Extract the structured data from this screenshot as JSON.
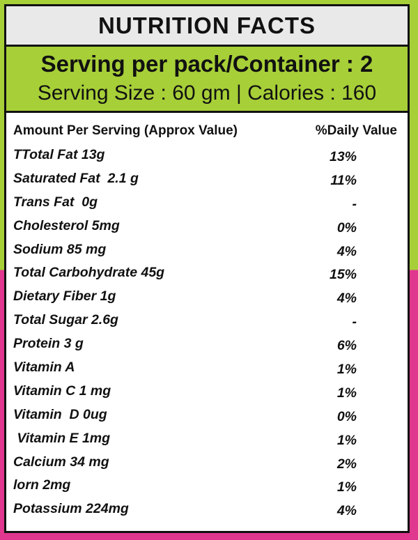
{
  "header": {
    "title": "NUTRITION FACTS",
    "serving_per_pack": "Serving per pack/Container : 2",
    "serving_size_calories": "Serving Size : 60 gm | Calories : 160"
  },
  "table": {
    "columns": [
      "Amount Per Serving (Approx Value)",
      "%Daily Value"
    ],
    "rows": [
      {
        "name": "TTotal Fat 13g",
        "dv": "13%"
      },
      {
        "name": "Saturated Fat  2.1 g",
        "dv": "11%"
      },
      {
        "name": "Trans Fat  0g",
        "dv": "-"
      },
      {
        "name": "Cholesterol 5mg",
        "dv": "0%"
      },
      {
        "name": "Sodium 85 mg",
        "dv": "4%"
      },
      {
        "name": "Total Carbohydrate 45g",
        "dv": "15%"
      },
      {
        "name": "Dietary Fiber 1g",
        "dv": "4%"
      },
      {
        "name": "Total Sugar 2.6g",
        "dv": "-"
      },
      {
        "name": "Protein 3 g",
        "dv": "6%"
      },
      {
        "name": "Vitamin A",
        "dv": "1%"
      },
      {
        "name": "Vitamin C 1 mg",
        "dv": "1%"
      },
      {
        "name": "Vitamin  D 0ug",
        "dv": "0%"
      },
      {
        "name": " Vitamin E 1mg",
        "dv": "1%"
      },
      {
        "name": "Calcium 34 mg",
        "dv": "2%"
      },
      {
        "name": "lorn 2mg",
        "dv": "1%"
      },
      {
        "name": "Potassium 224mg",
        "dv": "4%"
      }
    ]
  },
  "colors": {
    "accent_green": "#a7cf38",
    "accent_pink": "#e0378f",
    "title_bg": "#e9e9ea",
    "text": "#111111"
  }
}
